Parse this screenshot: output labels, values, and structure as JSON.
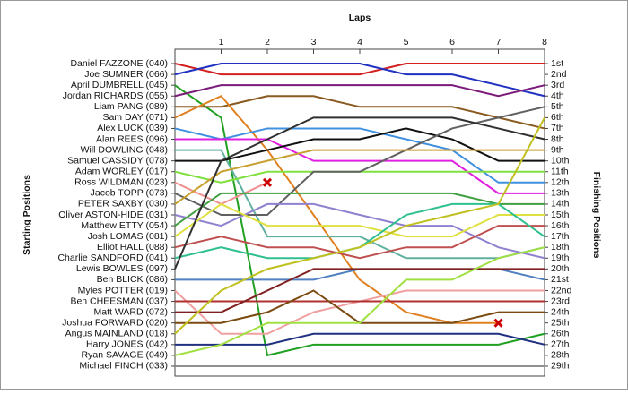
{
  "chart_data": {
    "type": "lap",
    "title": "Laps",
    "y_label": "Starting Positions",
    "y2_label": "Finishing Positions",
    "x": [
      0,
      1,
      2,
      3,
      4,
      5,
      6,
      7,
      8
    ],
    "xlim": [
      0,
      8
    ],
    "xticks": [
      1,
      2,
      3,
      4,
      5,
      6,
      7,
      8
    ],
    "ylim": [
      0.5,
      29.5
    ],
    "position_labels": [
      "1st",
      "2nd",
      "3rd",
      "4th",
      "5th",
      "6th",
      "7th",
      "8th",
      "9th",
      "10th",
      "11th",
      "12th",
      "13th",
      "14th",
      "15th",
      "16th",
      "17th",
      "18th",
      "19th",
      "20th",
      "21st",
      "22nd",
      "23rd",
      "24th",
      "25th",
      "26th",
      "27th",
      "28th",
      "29th"
    ],
    "retired_marker_color": "#cc0000",
    "series": [
      {
        "name": "Daniel FAZZONE (040)",
        "color": "#d42020",
        "values": [
          1,
          2,
          2,
          2,
          2,
          1,
          1,
          1,
          1
        ]
      },
      {
        "name": "Joe SUMNER (066)",
        "color": "#2030c0",
        "values": [
          2,
          1,
          1,
          1,
          1,
          2,
          2,
          3,
          4
        ]
      },
      {
        "name": "April DUMBRELL (045)",
        "color": "#20a020",
        "values": [
          3,
          6,
          28,
          27,
          27,
          27,
          27,
          27,
          26
        ]
      },
      {
        "name": "Jordan RICHARDS (055)",
        "color": "#7a1a7a",
        "values": [
          4,
          3,
          3,
          3,
          3,
          3,
          3,
          4,
          3
        ]
      },
      {
        "name": "Liam PANG (089)",
        "color": "#8a5a20",
        "values": [
          5,
          5,
          4,
          4,
          5,
          5,
          5,
          6,
          7
        ]
      },
      {
        "name": "Sam DAY (071)",
        "color": "#e08020",
        "values": [
          6,
          4,
          9,
          15,
          21,
          24,
          25,
          25,
          null
        ],
        "retired": true
      },
      {
        "name": "Alex LUCK (039)",
        "color": "#4090e0",
        "values": [
          7,
          8,
          7,
          7,
          7,
          8,
          9,
          12,
          12
        ]
      },
      {
        "name": "Alan REES (096)",
        "color": "#e020e0",
        "values": [
          8,
          8,
          8,
          10,
          10,
          10,
          10,
          13,
          13
        ]
      },
      {
        "name": "Will DOWLING (048)",
        "color": "#60b0a0",
        "values": [
          9,
          9,
          17,
          17,
          17,
          19,
          19,
          19,
          18
        ]
      },
      {
        "name": "Samuel CASSIDY (078)",
        "color": "#101010",
        "values": [
          10,
          10,
          9,
          8,
          8,
          7,
          8,
          10,
          10
        ]
      },
      {
        "name": "Adam WORLEY (017)",
        "color": "#80e040",
        "values": [
          11,
          12,
          11,
          11,
          11,
          11,
          11,
          11,
          11
        ]
      },
      {
        "name": "Ross WILDMAN (023)",
        "color": "#f09090",
        "values": [
          12,
          14,
          12,
          null,
          null,
          null,
          null,
          null,
          null
        ],
        "retired": true
      },
      {
        "name": "Jacob TOPP (073)",
        "color": "#606060",
        "values": [
          13,
          15,
          15,
          11,
          11,
          9,
          7,
          6,
          5
        ]
      },
      {
        "name": "PETER SAXBY (030)",
        "color": "#c8a030",
        "values": [
          14,
          11,
          10,
          9,
          9,
          9,
          9,
          9,
          9
        ]
      },
      {
        "name": "Oliver ASTON-HIDE (031)",
        "color": "#9080d0",
        "values": [
          15,
          16,
          14,
          14,
          15,
          16,
          16,
          18,
          19
        ]
      },
      {
        "name": "Matthew ETTY (054)",
        "color": "#40a040",
        "values": [
          16,
          13,
          13,
          13,
          13,
          13,
          13,
          14,
          14
        ]
      },
      {
        "name": "Josh LOMAS (081)",
        "color": "#e0e040",
        "values": [
          17,
          14,
          16,
          16,
          16,
          17,
          17,
          15,
          15
        ]
      },
      {
        "name": "Elliot HALL (088)",
        "color": "#c05050",
        "values": [
          18,
          17,
          18,
          18,
          19,
          18,
          18,
          16,
          16
        ]
      },
      {
        "name": "Charlie SANDFORD (041)",
        "color": "#30c090",
        "values": [
          19,
          18,
          19,
          19,
          18,
          15,
          14,
          14,
          17
        ]
      },
      {
        "name": "Lewis BOWLES (097)",
        "color": "#303030",
        "values": [
          20,
          10,
          8,
          6,
          6,
          6,
          6,
          7,
          8
        ]
      },
      {
        "name": "Ben BLICK (086)",
        "color": "#5080c0",
        "values": [
          21,
          21,
          21,
          21,
          20,
          20,
          20,
          20,
          21
        ]
      },
      {
        "name": "Myles POTTER (019)",
        "color": "#f0a0a0",
        "values": [
          22,
          26,
          26,
          24,
          23,
          22,
          22,
          22,
          22
        ]
      },
      {
        "name": "Ben CHEESMAN (037)",
        "color": "#b03030",
        "values": [
          23,
          23,
          23,
          23,
          23,
          23,
          23,
          23,
          23
        ]
      },
      {
        "name": "Matt WARD (072)",
        "color": "#802020",
        "values": [
          24,
          24,
          22,
          20,
          20,
          20,
          20,
          20,
          20
        ]
      },
      {
        "name": "Joshua FORWARD (020)",
        "color": "#7a4a10",
        "values": [
          25,
          25,
          24,
          22,
          25,
          25,
          25,
          24,
          24
        ]
      },
      {
        "name": "Angus MAINLAND (018)",
        "color": "#c0c020",
        "values": [
          26,
          22,
          20,
          19,
          18,
          16,
          15,
          14,
          6
        ]
      },
      {
        "name": "Harry JONES (042)",
        "color": "#203080",
        "values": [
          27,
          27,
          27,
          26,
          26,
          26,
          26,
          26,
          27
        ]
      },
      {
        "name": "Ryan SAVAGE (049)",
        "color": "#a0e040",
        "values": [
          28,
          27,
          25,
          25,
          25,
          21,
          21,
          19,
          18
        ]
      },
      {
        "name": "Michael FINCH (033)",
        "color": "#909090",
        "values": [
          29,
          29,
          29,
          29,
          29,
          29,
          29,
          29,
          29
        ]
      }
    ]
  }
}
